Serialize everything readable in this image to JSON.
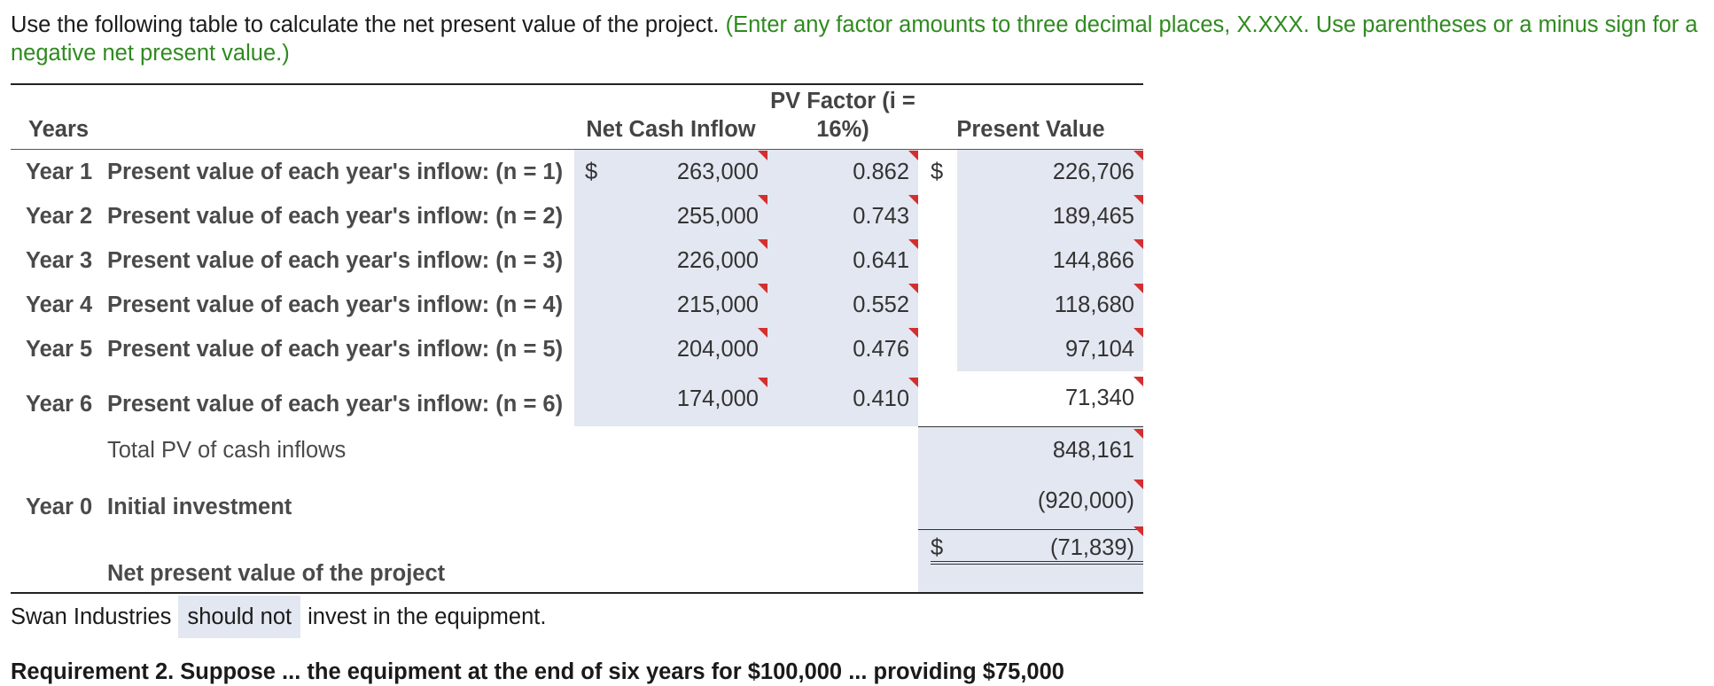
{
  "instructions": {
    "main": "Use the following table to calculate the net present value of the project. ",
    "hint": "(Enter any factor amounts to three decimal places, X.XXX. Use parentheses or a minus sign for a negative net present value.)"
  },
  "table": {
    "headers": {
      "years": "Years",
      "net_cash_inflow": "Net Cash Inflow",
      "pv_factor": "PV Factor (i = 16%)",
      "present_value": "Present Value"
    },
    "rows": [
      {
        "year": "Year 1",
        "desc": "Present value of each year's inflow: (n = 1)",
        "inflow_sign": "$",
        "inflow": "263,000",
        "factor": "0.862",
        "pv_sign": "$",
        "pv": "226,706"
      },
      {
        "year": "Year 2",
        "desc": "Present value of each year's inflow: (n = 2)",
        "inflow_sign": "",
        "inflow": "255,000",
        "factor": "0.743",
        "pv_sign": "",
        "pv": "189,465"
      },
      {
        "year": "Year 3",
        "desc": "Present value of each year's inflow: (n = 3)",
        "inflow_sign": "",
        "inflow": "226,000",
        "factor": "0.641",
        "pv_sign": "",
        "pv": "144,866"
      },
      {
        "year": "Year 4",
        "desc": "Present value of each year's inflow: (n = 4)",
        "inflow_sign": "",
        "inflow": "215,000",
        "factor": "0.552",
        "pv_sign": "",
        "pv": "118,680"
      },
      {
        "year": "Year 5",
        "desc": "Present value of each year's inflow: (n = 5)",
        "inflow_sign": "",
        "inflow": "204,000",
        "factor": "0.476",
        "pv_sign": "",
        "pv": "97,104"
      },
      {
        "year": "Year 6",
        "desc": "Present value of each year's inflow: (n = 6)",
        "inflow_sign": "",
        "inflow": "174,000",
        "factor": "0.410",
        "pv_sign": "",
        "pv": "71,340"
      }
    ],
    "total": {
      "desc": "Total PV of cash inflows",
      "pv": "848,161"
    },
    "initial": {
      "year": "Year 0",
      "desc": "Initial investment",
      "pv": "(920,000)"
    },
    "npv": {
      "desc": "Net present value of the project",
      "pv_sign": "$",
      "pv": "(71,839)"
    }
  },
  "answer": {
    "prefix": "Swan Industries",
    "selection": "should not",
    "suffix": "invest in the equipment."
  },
  "cutoff_text": "Requirement 2. Suppose ... the equipment at the end of six years for $100,000 ... providing $75,000"
}
